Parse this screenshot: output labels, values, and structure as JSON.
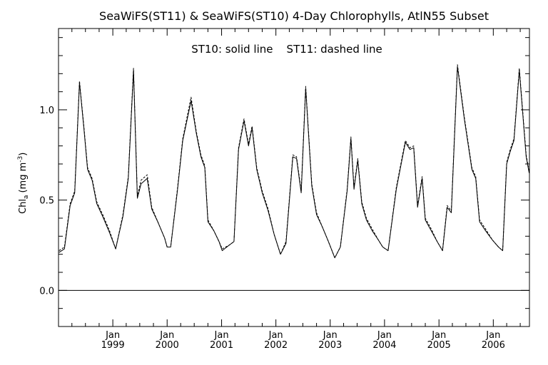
{
  "chart_data": {
    "type": "line",
    "title": "SeaWiFS(ST11) & SeaWiFS(ST10) 4-Day Chlorophylls, AtlN55 Subset",
    "annotation": "ST10: solid line    ST11: dashed line",
    "ylabel": "Chl",
    "ylabel_sub": "a",
    "ylabel_units": "(mg m",
    "ylabel_units_sup": "-3",
    "ylabel_units_close": ")",
    "xlim": [
      "1998-01-01",
      "2006-09-01"
    ],
    "ylim": [
      -0.2,
      1.45
    ],
    "y_ticks": [
      {
        "value": 0.0,
        "label": "0.0"
      },
      {
        "value": 0.5,
        "label": "0.5"
      },
      {
        "value": 1.0,
        "label": "1.0"
      }
    ],
    "x_ticks": [
      {
        "date": "1999-01-01",
        "month": "Jan",
        "year": "1999"
      },
      {
        "date": "2000-01-01",
        "month": "Jan",
        "year": "2000"
      },
      {
        "date": "2001-01-01",
        "month": "Jan",
        "year": "2001"
      },
      {
        "date": "2002-01-01",
        "month": "Jan",
        "year": "2002"
      },
      {
        "date": "2003-01-01",
        "month": "Jan",
        "year": "2003"
      },
      {
        "date": "2004-01-01",
        "month": "Jan",
        "year": "2004"
      },
      {
        "date": "2005-01-01",
        "month": "Jan",
        "year": "2005"
      },
      {
        "date": "2006-01-01",
        "month": "Jan",
        "year": "2006"
      }
    ],
    "zero_line": 0.0,
    "series": [
      {
        "name": "ST10",
        "style": "solid",
        "color": "#000000",
        "points": [
          [
            "1998-01-05",
            0.21
          ],
          [
            "1998-02-10",
            0.23
          ],
          [
            "1998-03-20",
            0.47
          ],
          [
            "1998-04-20",
            0.54
          ],
          [
            "1998-05-22",
            1.15
          ],
          [
            "1998-06-20",
            0.9
          ],
          [
            "1998-07-15",
            0.67
          ],
          [
            "1998-08-15",
            0.61
          ],
          [
            "1998-09-15",
            0.48
          ],
          [
            "1998-10-25",
            0.41
          ],
          [
            "1998-12-10",
            0.32
          ],
          [
            "1999-01-20",
            0.23
          ],
          [
            "1999-03-10",
            0.41
          ],
          [
            "1999-04-15",
            0.62
          ],
          [
            "1999-05-20",
            1.22
          ],
          [
            "1999-06-15",
            0.51
          ],
          [
            "1999-07-10",
            0.59
          ],
          [
            "1999-08-20",
            0.62
          ],
          [
            "1999-09-20",
            0.45
          ],
          [
            "1999-10-30",
            0.38
          ],
          [
            "1999-12-15",
            0.29
          ],
          [
            "2000-01-01",
            0.24
          ],
          [
            "2000-01-25",
            0.24
          ],
          [
            "2000-03-10",
            0.55
          ],
          [
            "2000-04-15",
            0.83
          ],
          [
            "2000-06-10",
            1.05
          ],
          [
            "2000-07-15",
            0.87
          ],
          [
            "2000-08-15",
            0.74
          ],
          [
            "2000-09-10",
            0.68
          ],
          [
            "2000-10-01",
            0.38
          ],
          [
            "2000-11-10",
            0.33
          ],
          [
            "2000-12-15",
            0.27
          ],
          [
            "2001-01-05",
            0.22
          ],
          [
            "2001-02-20",
            0.25
          ],
          [
            "2001-03-25",
            0.27
          ],
          [
            "2001-04-25",
            0.78
          ],
          [
            "2001-06-01",
            0.94
          ],
          [
            "2001-07-01",
            0.8
          ],
          [
            "2001-07-25",
            0.9
          ],
          [
            "2001-08-25",
            0.67
          ],
          [
            "2001-10-01",
            0.54
          ],
          [
            "2001-11-10",
            0.44
          ],
          [
            "2001-12-20",
            0.31
          ],
          [
            "2002-02-01",
            0.2
          ],
          [
            "2002-03-10",
            0.26
          ],
          [
            "2002-04-25",
            0.74
          ],
          [
            "2002-05-20",
            0.73
          ],
          [
            "2002-06-20",
            0.54
          ],
          [
            "2002-07-20",
            1.12
          ],
          [
            "2002-08-30",
            0.58
          ],
          [
            "2002-10-01",
            0.42
          ],
          [
            "2002-11-10",
            0.35
          ],
          [
            "2002-12-20",
            0.27
          ],
          [
            "2003-02-01",
            0.18
          ],
          [
            "2003-03-10",
            0.24
          ],
          [
            "2003-04-25",
            0.55
          ],
          [
            "2003-05-20",
            0.84
          ],
          [
            "2003-06-10",
            0.56
          ],
          [
            "2003-07-05",
            0.72
          ],
          [
            "2003-08-01",
            0.48
          ],
          [
            "2003-09-01",
            0.39
          ],
          [
            "2003-10-10",
            0.33
          ],
          [
            "2003-11-20",
            0.28
          ],
          [
            "2003-12-20",
            0.24
          ],
          [
            "2004-01-25",
            0.22
          ],
          [
            "2004-03-20",
            0.56
          ],
          [
            "2004-05-20",
            0.82
          ],
          [
            "2004-06-20",
            0.78
          ],
          [
            "2004-07-15",
            0.79
          ],
          [
            "2004-08-10",
            0.46
          ],
          [
            "2004-09-10",
            0.62
          ],
          [
            "2004-10-01",
            0.39
          ],
          [
            "2004-11-10",
            0.33
          ],
          [
            "2004-12-20",
            0.27
          ],
          [
            "2005-01-25",
            0.22
          ],
          [
            "2005-02-25",
            0.46
          ],
          [
            "2005-03-25",
            0.43
          ],
          [
            "2005-05-05",
            1.24
          ],
          [
            "2005-06-20",
            0.95
          ],
          [
            "2005-08-10",
            0.67
          ],
          [
            "2005-09-05",
            0.62
          ],
          [
            "2005-10-01",
            0.38
          ],
          [
            "2005-11-10",
            0.33
          ],
          [
            "2005-12-25",
            0.28
          ],
          [
            "2006-02-05",
            0.24
          ],
          [
            "2006-03-05",
            0.22
          ],
          [
            "2006-04-01",
            0.7
          ],
          [
            "2006-04-25",
            0.77
          ],
          [
            "2006-05-20",
            0.83
          ],
          [
            "2006-06-25",
            1.22
          ],
          [
            "2006-08-10",
            0.74
          ],
          [
            "2006-08-30",
            0.65
          ]
        ]
      },
      {
        "name": "ST11",
        "style": "dashed",
        "color": "#000000",
        "points": [
          [
            "1998-01-05",
            0.22
          ],
          [
            "1998-02-10",
            0.24
          ],
          [
            "1998-03-20",
            0.48
          ],
          [
            "1998-04-20",
            0.55
          ],
          [
            "1998-05-22",
            1.16
          ],
          [
            "1998-06-20",
            0.91
          ],
          [
            "1998-07-15",
            0.68
          ],
          [
            "1998-08-15",
            0.62
          ],
          [
            "1998-09-15",
            0.49
          ],
          [
            "1998-10-25",
            0.42
          ],
          [
            "1998-12-10",
            0.33
          ],
          [
            "1999-01-20",
            0.23
          ],
          [
            "1999-03-10",
            0.42
          ],
          [
            "1999-04-15",
            0.63
          ],
          [
            "1999-05-20",
            1.23
          ],
          [
            "1999-06-15",
            0.52
          ],
          [
            "1999-07-10",
            0.61
          ],
          [
            "1999-08-20",
            0.64
          ],
          [
            "1999-09-20",
            0.46
          ],
          [
            "1999-10-30",
            0.38
          ],
          [
            "1999-12-15",
            0.29
          ],
          [
            "2000-01-01",
            0.24
          ],
          [
            "2000-01-25",
            0.24
          ],
          [
            "2000-03-10",
            0.56
          ],
          [
            "2000-04-15",
            0.84
          ],
          [
            "2000-06-10",
            1.07
          ],
          [
            "2000-07-15",
            0.88
          ],
          [
            "2000-08-15",
            0.75
          ],
          [
            "2000-09-10",
            0.69
          ],
          [
            "2000-10-01",
            0.39
          ],
          [
            "2000-11-10",
            0.33
          ],
          [
            "2000-12-15",
            0.27
          ],
          [
            "2001-01-05",
            0.23
          ],
          [
            "2001-02-20",
            0.25
          ],
          [
            "2001-03-25",
            0.27
          ],
          [
            "2001-04-25",
            0.79
          ],
          [
            "2001-06-01",
            0.95
          ],
          [
            "2001-07-01",
            0.81
          ],
          [
            "2001-07-25",
            0.91
          ],
          [
            "2001-08-25",
            0.68
          ],
          [
            "2001-10-01",
            0.55
          ],
          [
            "2001-11-10",
            0.45
          ],
          [
            "2001-12-20",
            0.31
          ],
          [
            "2002-02-01",
            0.2
          ],
          [
            "2002-03-10",
            0.27
          ],
          [
            "2002-04-25",
            0.75
          ],
          [
            "2002-05-20",
            0.74
          ],
          [
            "2002-06-20",
            0.55
          ],
          [
            "2002-07-20",
            1.13
          ],
          [
            "2002-08-30",
            0.59
          ],
          [
            "2002-10-01",
            0.43
          ],
          [
            "2002-11-10",
            0.35
          ],
          [
            "2002-12-20",
            0.27
          ],
          [
            "2003-02-01",
            0.18
          ],
          [
            "2003-03-10",
            0.24
          ],
          [
            "2003-04-25",
            0.56
          ],
          [
            "2003-05-20",
            0.85
          ],
          [
            "2003-06-10",
            0.57
          ],
          [
            "2003-07-05",
            0.73
          ],
          [
            "2003-08-01",
            0.49
          ],
          [
            "2003-09-01",
            0.4
          ],
          [
            "2003-10-10",
            0.34
          ],
          [
            "2003-11-20",
            0.28
          ],
          [
            "2003-12-20",
            0.24
          ],
          [
            "2004-01-25",
            0.22
          ],
          [
            "2004-03-20",
            0.57
          ],
          [
            "2004-05-20",
            0.83
          ],
          [
            "2004-06-20",
            0.79
          ],
          [
            "2004-07-15",
            0.8
          ],
          [
            "2004-08-10",
            0.47
          ],
          [
            "2004-09-10",
            0.63
          ],
          [
            "2004-10-01",
            0.4
          ],
          [
            "2004-11-10",
            0.34
          ],
          [
            "2004-12-20",
            0.27
          ],
          [
            "2005-01-25",
            0.22
          ],
          [
            "2005-02-25",
            0.47
          ],
          [
            "2005-03-25",
            0.44
          ],
          [
            "2005-05-05",
            1.25
          ],
          [
            "2005-06-20",
            0.96
          ],
          [
            "2005-08-10",
            0.68
          ],
          [
            "2005-09-05",
            0.63
          ],
          [
            "2005-10-01",
            0.39
          ],
          [
            "2005-11-10",
            0.34
          ],
          [
            "2005-12-25",
            0.28
          ],
          [
            "2006-02-05",
            0.24
          ],
          [
            "2006-03-05",
            0.22
          ],
          [
            "2006-04-01",
            0.71
          ],
          [
            "2006-04-25",
            0.78
          ],
          [
            "2006-05-20",
            0.84
          ],
          [
            "2006-06-25",
            1.23
          ],
          [
            "2006-08-10",
            0.75
          ],
          [
            "2006-08-30",
            0.66
          ]
        ]
      }
    ]
  }
}
